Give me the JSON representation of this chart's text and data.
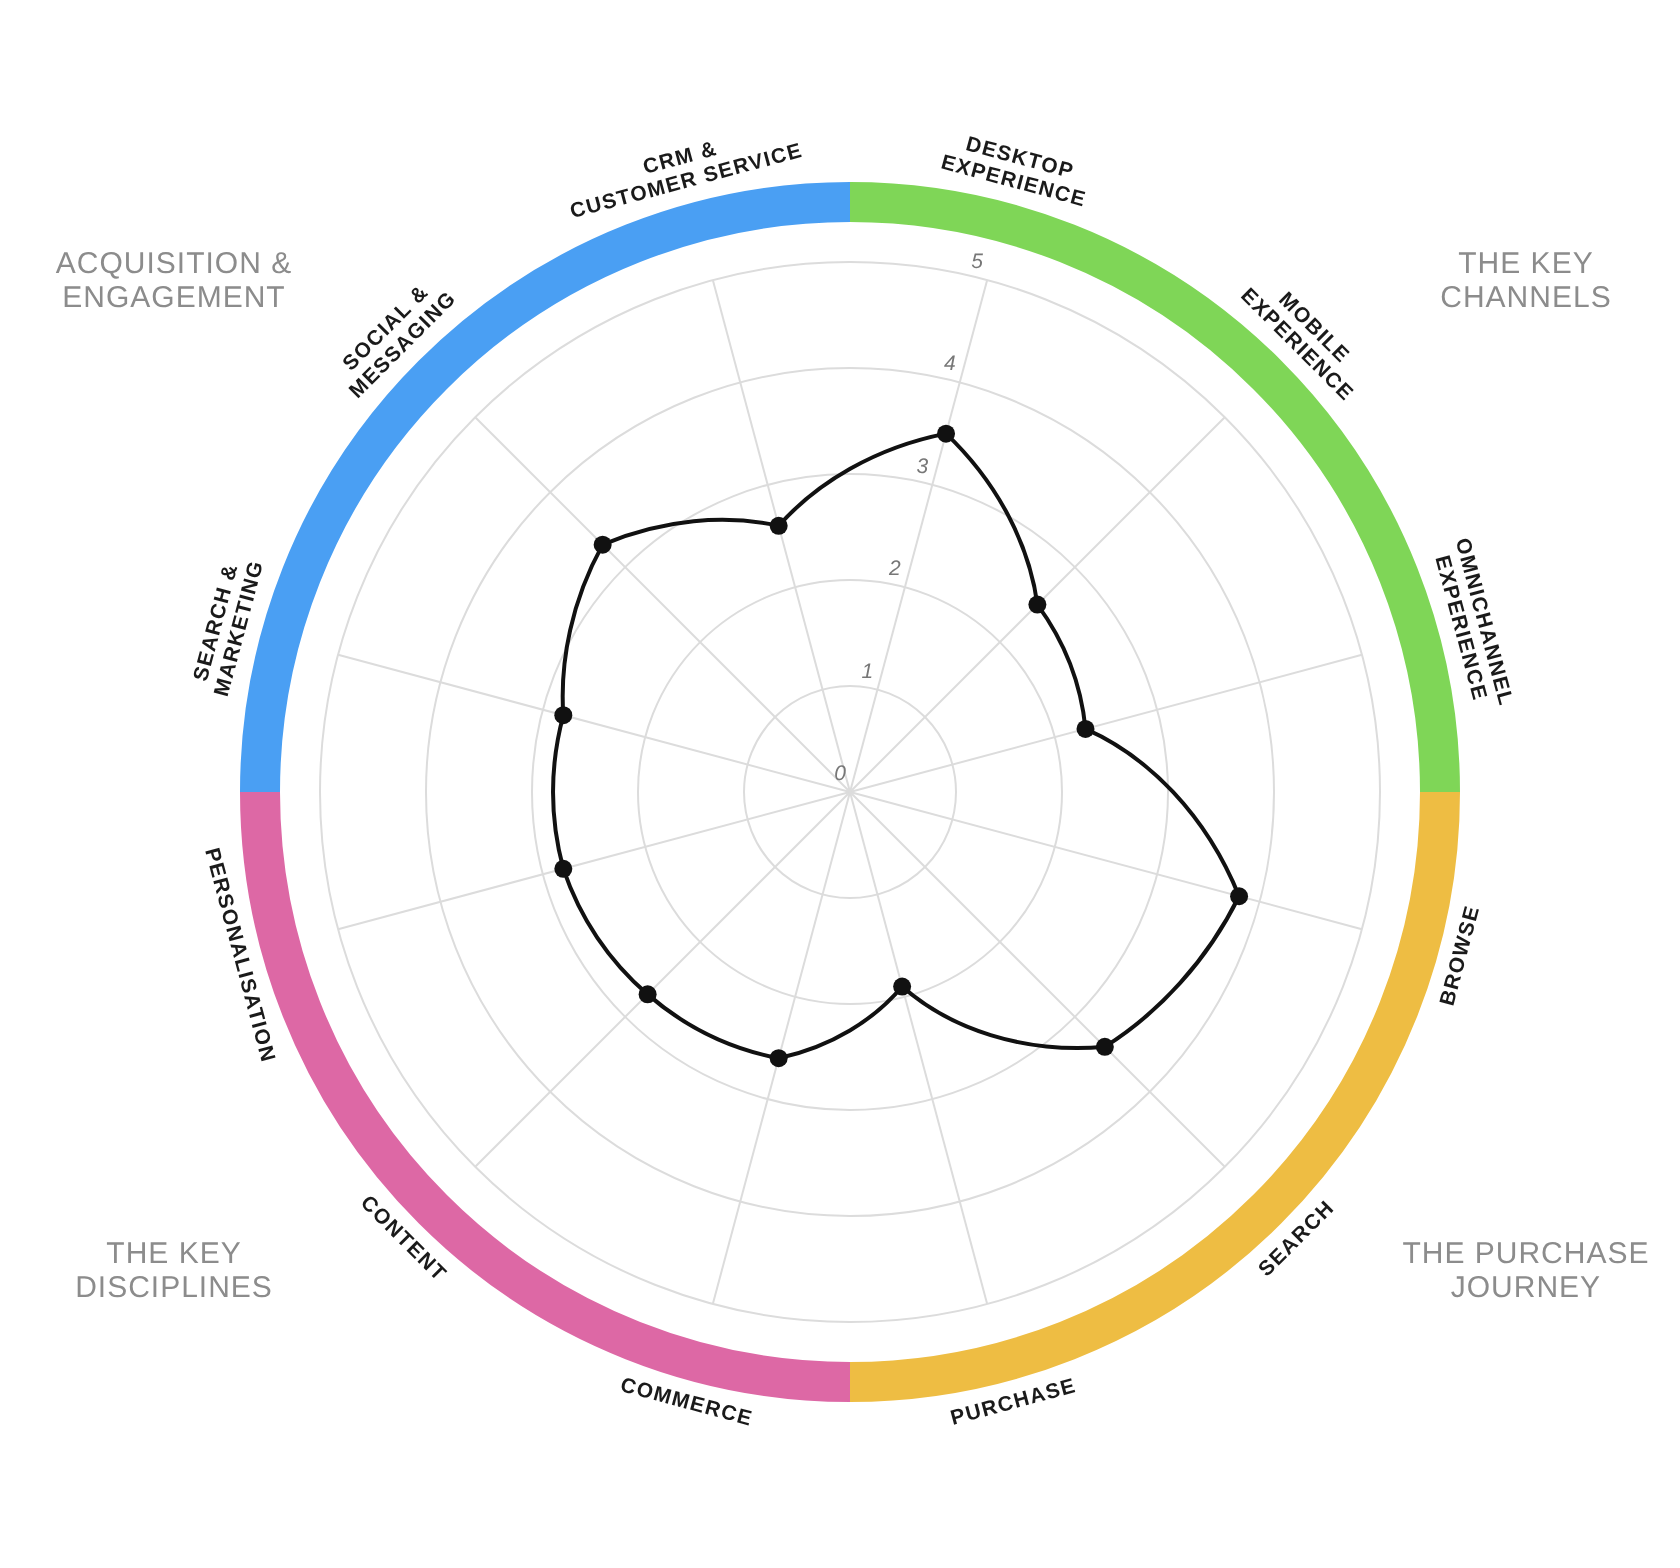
{
  "chart_data": {
    "type": "radar",
    "categories": [
      "DESKTOP\nEXPERIENCE",
      "MOBILE\nEXPERIENCE",
      "OMNICHANNEL\nEXPERIENCE",
      "BROWSE",
      "SEARCH",
      "PURCHASE",
      "COMMERCE",
      "CONTENT",
      "PERSONALISATION",
      "SEARCH &\nMARKETING",
      "SOCIAL &\nMESSAGING",
      "CRM &\nCUSTOMER SERVICE"
    ],
    "series": [
      {
        "color": "#111111",
        "values": [
          3.5,
          2.5,
          2.3,
          3.8,
          3.4,
          1.9,
          2.6,
          2.7,
          2.8,
          2.8,
          3.3,
          2.6
        ]
      }
    ],
    "ylim": [
      0,
      5
    ],
    "yticks": [
      0,
      1,
      2,
      3,
      4,
      5
    ],
    "grid": true,
    "marker": "circle",
    "annotations": [
      "THE KEY\nCHANNELS",
      "THE PURCHASE\nJOURNEY",
      "THE KEY\nDISCIPLINES",
      "ACQUISITION &\nENGAGEMENT"
    ]
  }
}
